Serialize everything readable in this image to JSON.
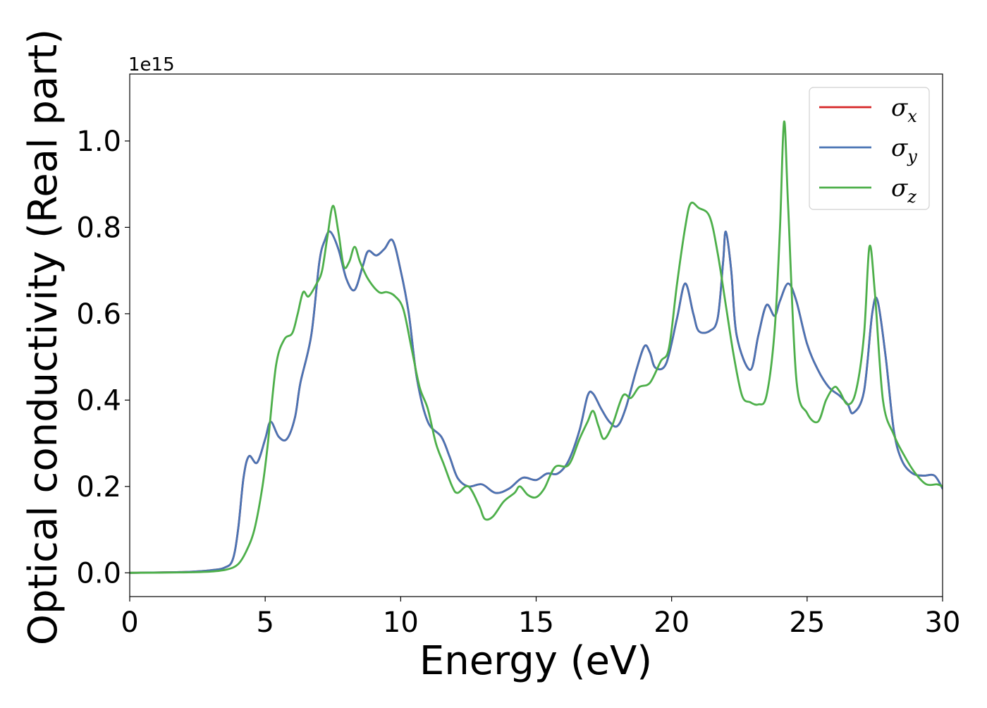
{
  "chart_data": {
    "type": "line",
    "xlabel": "Energy (eV)",
    "ylabel": "Optical conductivity (Real part)",
    "y_offset_text": "1e15",
    "xlim": [
      0,
      30
    ],
    "ylim": [
      -0.055,
      1.155
    ],
    "x_ticks": [
      0,
      5,
      10,
      15,
      20,
      25,
      30
    ],
    "x_tick_labels": [
      "0",
      "5",
      "10",
      "15",
      "20",
      "25",
      "30"
    ],
    "y_ticks": [
      0.0,
      0.2,
      0.4,
      0.6,
      0.8,
      1.0
    ],
    "y_tick_labels": [
      "0.0",
      "0.2",
      "0.4",
      "0.6",
      "0.8",
      "1.0"
    ],
    "grid": false,
    "legend_position": "top-right",
    "legend": [
      {
        "symbol": "σ",
        "sub": "x",
        "color": "#d62728"
      },
      {
        "symbol": "σ",
        "sub": "y",
        "color": "#4a74b4"
      },
      {
        "symbol": "σ",
        "sub": "z",
        "color": "#4daf4a"
      }
    ],
    "series": [
      {
        "color": "#d62728",
        "points": [
          [
            0,
            0
          ],
          [
            2,
            0.002
          ],
          [
            3,
            0.006
          ],
          [
            3.5,
            0.012
          ],
          [
            3.8,
            0.03
          ],
          [
            4,
            0.1
          ],
          [
            4.2,
            0.22
          ],
          [
            4.4,
            0.27
          ],
          [
            4.7,
            0.255
          ],
          [
            5,
            0.31
          ],
          [
            5.2,
            0.35
          ],
          [
            5.5,
            0.315
          ],
          [
            5.8,
            0.31
          ],
          [
            6.1,
            0.36
          ],
          [
            6.3,
            0.44
          ],
          [
            6.7,
            0.55
          ],
          [
            7,
            0.72
          ],
          [
            7.2,
            0.77
          ],
          [
            7.4,
            0.79
          ],
          [
            7.7,
            0.75
          ],
          [
            8,
            0.68
          ],
          [
            8.3,
            0.655
          ],
          [
            8.6,
            0.71
          ],
          [
            8.8,
            0.745
          ],
          [
            9.1,
            0.735
          ],
          [
            9.4,
            0.75
          ],
          [
            9.7,
            0.77
          ],
          [
            10,
            0.7
          ],
          [
            10.3,
            0.6
          ],
          [
            10.6,
            0.45
          ],
          [
            11,
            0.35
          ],
          [
            11.5,
            0.315
          ],
          [
            11.8,
            0.27
          ],
          [
            12.1,
            0.22
          ],
          [
            12.5,
            0.2
          ],
          [
            13,
            0.205
          ],
          [
            13.5,
            0.185
          ],
          [
            14,
            0.195
          ],
          [
            14.5,
            0.22
          ],
          [
            15,
            0.215
          ],
          [
            15.4,
            0.23
          ],
          [
            15.8,
            0.23
          ],
          [
            16.2,
            0.26
          ],
          [
            16.6,
            0.33
          ],
          [
            16.9,
            0.41
          ],
          [
            17.1,
            0.415
          ],
          [
            17.4,
            0.38
          ],
          [
            17.7,
            0.35
          ],
          [
            18,
            0.34
          ],
          [
            18.3,
            0.38
          ],
          [
            18.7,
            0.47
          ],
          [
            19,
            0.525
          ],
          [
            19.2,
            0.51
          ],
          [
            19.4,
            0.475
          ],
          [
            19.8,
            0.485
          ],
          [
            20.2,
            0.59
          ],
          [
            20.5,
            0.67
          ],
          [
            20.8,
            0.6
          ],
          [
            21,
            0.56
          ],
          [
            21.4,
            0.56
          ],
          [
            21.7,
            0.59
          ],
          [
            21.9,
            0.72
          ],
          [
            22,
            0.79
          ],
          [
            22.2,
            0.7
          ],
          [
            22.4,
            0.55
          ],
          [
            22.9,
            0.47
          ],
          [
            23.2,
            0.55
          ],
          [
            23.5,
            0.62
          ],
          [
            23.8,
            0.595
          ],
          [
            24,
            0.63
          ],
          [
            24.3,
            0.67
          ],
          [
            24.6,
            0.63
          ],
          [
            25,
            0.53
          ],
          [
            25.4,
            0.47
          ],
          [
            25.8,
            0.43
          ],
          [
            26.2,
            0.41
          ],
          [
            26.5,
            0.39
          ],
          [
            26.7,
            0.37
          ],
          [
            27.1,
            0.42
          ],
          [
            27.4,
            0.6
          ],
          [
            27.6,
            0.63
          ],
          [
            27.9,
            0.5
          ],
          [
            28.2,
            0.33
          ],
          [
            28.5,
            0.26
          ],
          [
            28.9,
            0.23
          ],
          [
            29.3,
            0.225
          ],
          [
            29.7,
            0.225
          ],
          [
            30,
            0.195
          ]
        ]
      },
      {
        "color": "#4a74b4",
        "points": [
          [
            0,
            0
          ],
          [
            2,
            0.002
          ],
          [
            3,
            0.006
          ],
          [
            3.5,
            0.012
          ],
          [
            3.8,
            0.03
          ],
          [
            4,
            0.1
          ],
          [
            4.2,
            0.22
          ],
          [
            4.4,
            0.27
          ],
          [
            4.7,
            0.255
          ],
          [
            5,
            0.31
          ],
          [
            5.2,
            0.35
          ],
          [
            5.5,
            0.315
          ],
          [
            5.8,
            0.31
          ],
          [
            6.1,
            0.36
          ],
          [
            6.3,
            0.44
          ],
          [
            6.7,
            0.55
          ],
          [
            7,
            0.72
          ],
          [
            7.2,
            0.77
          ],
          [
            7.4,
            0.79
          ],
          [
            7.7,
            0.75
          ],
          [
            8,
            0.68
          ],
          [
            8.3,
            0.655
          ],
          [
            8.6,
            0.71
          ],
          [
            8.8,
            0.745
          ],
          [
            9.1,
            0.735
          ],
          [
            9.4,
            0.75
          ],
          [
            9.7,
            0.77
          ],
          [
            10,
            0.7
          ],
          [
            10.3,
            0.6
          ],
          [
            10.6,
            0.45
          ],
          [
            11,
            0.35
          ],
          [
            11.5,
            0.315
          ],
          [
            11.8,
            0.27
          ],
          [
            12.1,
            0.22
          ],
          [
            12.5,
            0.2
          ],
          [
            13,
            0.205
          ],
          [
            13.5,
            0.185
          ],
          [
            14,
            0.195
          ],
          [
            14.5,
            0.22
          ],
          [
            15,
            0.215
          ],
          [
            15.4,
            0.23
          ],
          [
            15.8,
            0.23
          ],
          [
            16.2,
            0.26
          ],
          [
            16.6,
            0.33
          ],
          [
            16.9,
            0.41
          ],
          [
            17.1,
            0.415
          ],
          [
            17.4,
            0.38
          ],
          [
            17.7,
            0.35
          ],
          [
            18,
            0.34
          ],
          [
            18.3,
            0.38
          ],
          [
            18.7,
            0.47
          ],
          [
            19,
            0.525
          ],
          [
            19.2,
            0.51
          ],
          [
            19.4,
            0.475
          ],
          [
            19.8,
            0.485
          ],
          [
            20.2,
            0.59
          ],
          [
            20.5,
            0.67
          ],
          [
            20.8,
            0.6
          ],
          [
            21,
            0.56
          ],
          [
            21.4,
            0.56
          ],
          [
            21.7,
            0.59
          ],
          [
            21.9,
            0.72
          ],
          [
            22,
            0.79
          ],
          [
            22.2,
            0.7
          ],
          [
            22.4,
            0.55
          ],
          [
            22.9,
            0.47
          ],
          [
            23.2,
            0.55
          ],
          [
            23.5,
            0.62
          ],
          [
            23.8,
            0.595
          ],
          [
            24,
            0.63
          ],
          [
            24.3,
            0.67
          ],
          [
            24.6,
            0.63
          ],
          [
            25,
            0.53
          ],
          [
            25.4,
            0.47
          ],
          [
            25.8,
            0.43
          ],
          [
            26.2,
            0.41
          ],
          [
            26.5,
            0.39
          ],
          [
            26.7,
            0.37
          ],
          [
            27.1,
            0.42
          ],
          [
            27.4,
            0.6
          ],
          [
            27.6,
            0.63
          ],
          [
            27.9,
            0.5
          ],
          [
            28.2,
            0.33
          ],
          [
            28.5,
            0.26
          ],
          [
            28.9,
            0.23
          ],
          [
            29.3,
            0.225
          ],
          [
            29.7,
            0.225
          ],
          [
            30,
            0.195
          ]
        ]
      },
      {
        "color": "#4daf4a",
        "points": [
          [
            0,
            0
          ],
          [
            2,
            0.001
          ],
          [
            3,
            0.003
          ],
          [
            3.6,
            0.008
          ],
          [
            4,
            0.02
          ],
          [
            4.3,
            0.05
          ],
          [
            4.6,
            0.1
          ],
          [
            4.9,
            0.2
          ],
          [
            5.1,
            0.3
          ],
          [
            5.4,
            0.48
          ],
          [
            5.7,
            0.54
          ],
          [
            6,
            0.555
          ],
          [
            6.2,
            0.6
          ],
          [
            6.4,
            0.65
          ],
          [
            6.6,
            0.64
          ],
          [
            6.9,
            0.67
          ],
          [
            7.1,
            0.7
          ],
          [
            7.3,
            0.78
          ],
          [
            7.5,
            0.85
          ],
          [
            7.7,
            0.79
          ],
          [
            7.9,
            0.71
          ],
          [
            8.1,
            0.72
          ],
          [
            8.3,
            0.755
          ],
          [
            8.5,
            0.72
          ],
          [
            8.8,
            0.68
          ],
          [
            9.2,
            0.65
          ],
          [
            9.5,
            0.65
          ],
          [
            9.8,
            0.64
          ],
          [
            10.1,
            0.61
          ],
          [
            10.4,
            0.52
          ],
          [
            10.7,
            0.43
          ],
          [
            11,
            0.38
          ],
          [
            11.3,
            0.3
          ],
          [
            11.6,
            0.25
          ],
          [
            11.9,
            0.2
          ],
          [
            12.1,
            0.185
          ],
          [
            12.5,
            0.2
          ],
          [
            12.9,
            0.155
          ],
          [
            13.1,
            0.125
          ],
          [
            13.4,
            0.13
          ],
          [
            13.8,
            0.165
          ],
          [
            14.2,
            0.185
          ],
          [
            14.4,
            0.2
          ],
          [
            14.7,
            0.18
          ],
          [
            15,
            0.175
          ],
          [
            15.3,
            0.195
          ],
          [
            15.7,
            0.245
          ],
          [
            16.2,
            0.25
          ],
          [
            16.6,
            0.31
          ],
          [
            16.9,
            0.35
          ],
          [
            17.1,
            0.375
          ],
          [
            17.3,
            0.34
          ],
          [
            17.5,
            0.31
          ],
          [
            17.8,
            0.34
          ],
          [
            18.2,
            0.41
          ],
          [
            18.5,
            0.405
          ],
          [
            18.8,
            0.43
          ],
          [
            19.2,
            0.44
          ],
          [
            19.6,
            0.49
          ],
          [
            19.9,
            0.52
          ],
          [
            20.2,
            0.67
          ],
          [
            20.5,
            0.8
          ],
          [
            20.7,
            0.855
          ],
          [
            21,
            0.845
          ],
          [
            21.4,
            0.825
          ],
          [
            21.7,
            0.74
          ],
          [
            22,
            0.62
          ],
          [
            22.3,
            0.5
          ],
          [
            22.6,
            0.41
          ],
          [
            22.9,
            0.395
          ],
          [
            23.2,
            0.39
          ],
          [
            23.5,
            0.41
          ],
          [
            23.8,
            0.56
          ],
          [
            24,
            0.8
          ],
          [
            24.15,
            1.045
          ],
          [
            24.3,
            0.85
          ],
          [
            24.6,
            0.45
          ],
          [
            25,
            0.37
          ],
          [
            25.4,
            0.35
          ],
          [
            25.7,
            0.4
          ],
          [
            26,
            0.43
          ],
          [
            26.2,
            0.42
          ],
          [
            26.5,
            0.39
          ],
          [
            26.8,
            0.42
          ],
          [
            27.1,
            0.55
          ],
          [
            27.3,
            0.755
          ],
          [
            27.5,
            0.65
          ],
          [
            27.8,
            0.4
          ],
          [
            28.2,
            0.32
          ],
          [
            28.6,
            0.27
          ],
          [
            29,
            0.23
          ],
          [
            29.4,
            0.205
          ],
          [
            29.8,
            0.205
          ],
          [
            30,
            0.2
          ]
        ]
      }
    ]
  }
}
